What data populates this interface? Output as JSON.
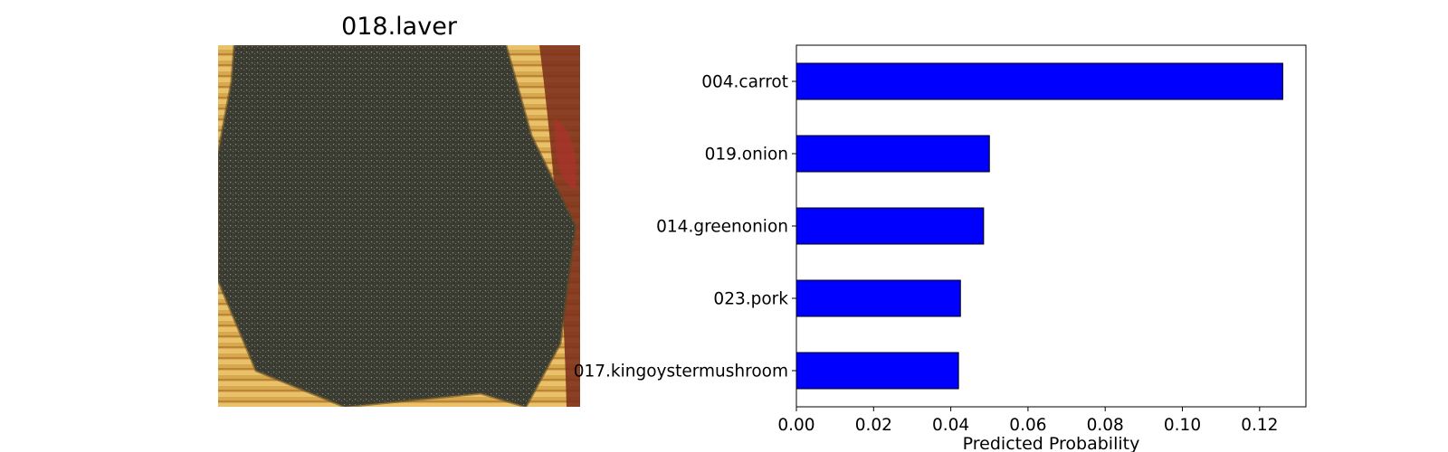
{
  "image_panel": {
    "title": "018.laver",
    "image_desc": "laver"
  },
  "colors": {
    "bar": "#0000ff",
    "bar_edge": "#000000"
  },
  "chart_data": {
    "type": "bar",
    "orientation": "horizontal",
    "categories": [
      "004.carrot",
      "019.onion",
      "014.greenonion",
      "023.pork",
      "017.kingoystermushroom"
    ],
    "values": [
      0.126,
      0.05,
      0.0485,
      0.0425,
      0.042
    ],
    "xlabel": "Predicted Probability",
    "ylabel": "",
    "xlim": [
      0,
      0.132
    ],
    "xticks": [
      0.0,
      0.02,
      0.04,
      0.06,
      0.08,
      0.1,
      0.12
    ],
    "xtick_labels": [
      "0.00",
      "0.02",
      "0.04",
      "0.06",
      "0.08",
      "0.10",
      "0.12"
    ],
    "grid": false,
    "legend": "none"
  }
}
